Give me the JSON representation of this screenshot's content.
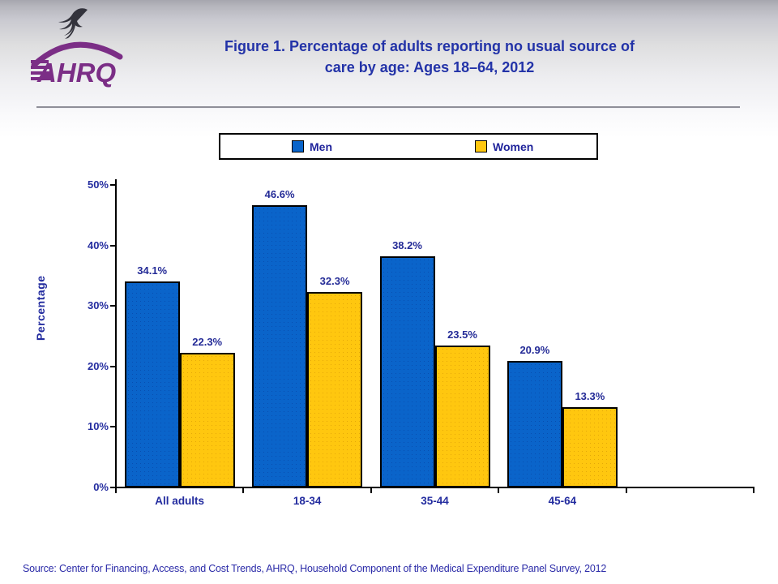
{
  "header": {
    "logo_text": "AHRQ",
    "title_lines": [
      "Figure 1. Percentage of adults reporting no usual source of",
      "care by age: Ages 18–64, 2012"
    ]
  },
  "legend": {
    "items": [
      {
        "label": "Men",
        "color": "#0a64ca"
      },
      {
        "label": "Women",
        "color": "#ffc70f"
      }
    ]
  },
  "chart_data": {
    "type": "bar",
    "title": "Figure 1. Percentage of adults reporting no usual source of care by age: Ages 18–64, 2012",
    "categories": [
      "All adults",
      "18-34",
      "35-44",
      "45-64"
    ],
    "series": [
      {
        "name": "Men",
        "color": "#0a64ca",
        "values": [
          34.1,
          46.6,
          38.2,
          20.9
        ],
        "labels": [
          "34.1%",
          "46.6%",
          "38.2%",
          "20.9%"
        ]
      },
      {
        "name": "Women",
        "color": "#ffc70f",
        "values": [
          22.3,
          32.3,
          23.5,
          13.3
        ],
        "labels": [
          "22.3%",
          "32.3%",
          "23.5%",
          "13.3%"
        ]
      }
    ],
    "xlabel": "",
    "ylabel": "Percentage",
    "ylim": [
      0,
      50
    ],
    "ytick_step": 10,
    "ytick_labels": [
      "0%",
      "10%",
      "20%",
      "30%",
      "40%",
      "50%"
    ],
    "grid": false,
    "legend_position": "top"
  },
  "colors": {
    "title_navy": "#2333a8",
    "label_navy": "#232c9f",
    "bar_blue": "#0a64ca",
    "bar_gold": "#ffc70f",
    "logo_purple": "#7b2e86"
  },
  "footer": {
    "source": "Source: Center for Financing, Access, and Cost Trends, AHRQ, Household Component of the Medical Expenditure Panel Survey, 2012"
  }
}
